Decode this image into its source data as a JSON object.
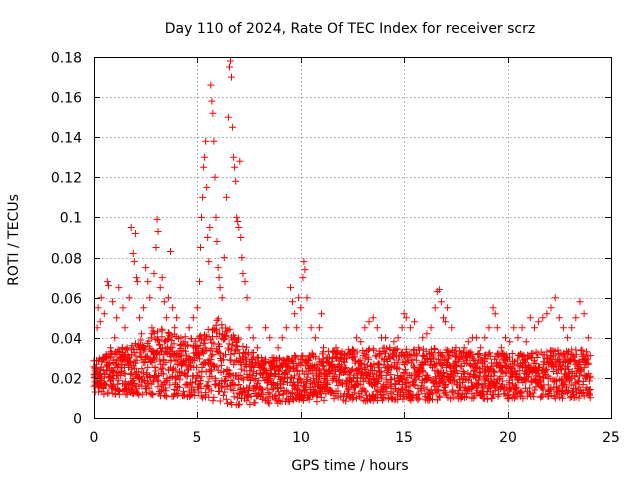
{
  "chart_data": {
    "type": "scatter",
    "title": "Day 110 of 2024, Rate Of TEC Index for receiver scrz",
    "xlabel": "GPS time / hours",
    "ylabel": "ROTI / TECUs",
    "xlim": [
      0,
      25
    ],
    "ylim": [
      0,
      0.18
    ],
    "xticks": [
      0,
      5,
      10,
      15,
      20,
      25
    ],
    "xtick_labels": [
      "0",
      "5",
      "10",
      "15",
      "20",
      "25"
    ],
    "yticks": [
      0,
      0.02,
      0.04,
      0.06,
      0.08,
      0.1,
      0.12,
      0.14,
      0.16,
      0.18
    ],
    "ytick_labels": [
      "0",
      "0.02",
      "0.04",
      "0.06",
      "0.08",
      "0.1",
      "0.12",
      "0.14",
      "0.16",
      "0.18"
    ],
    "grid": true,
    "marker": "+",
    "color": "#ff0000",
    "series": [
      {
        "name": "ROTI",
        "points": [
          [
            0.0,
            0.02
          ],
          [
            0.05,
            0.018
          ],
          [
            0.1,
            0.025
          ],
          [
            0.15,
            0.045
          ],
          [
            0.2,
            0.055
          ],
          [
            0.25,
            0.022
          ],
          [
            0.3,
            0.048
          ],
          [
            0.35,
            0.06
          ],
          [
            0.45,
            0.03
          ],
          [
            0.5,
            0.052
          ],
          [
            0.6,
            0.024
          ],
          [
            0.65,
            0.068
          ],
          [
            0.7,
            0.066
          ],
          [
            0.8,
            0.035
          ],
          [
            0.9,
            0.058
          ],
          [
            1.0,
            0.04
          ],
          [
            1.1,
            0.05
          ],
          [
            1.2,
            0.065
          ],
          [
            1.3,
            0.03
          ],
          [
            1.4,
            0.055
          ],
          [
            1.5,
            0.045
          ],
          [
            1.6,
            0.035
          ],
          [
            1.7,
            0.06
          ],
          [
            1.8,
            0.095
          ],
          [
            1.9,
            0.082
          ],
          [
            1.95,
            0.078
          ],
          [
            2.0,
            0.092
          ],
          [
            2.05,
            0.07
          ],
          [
            2.1,
            0.068
          ],
          [
            2.2,
            0.05
          ],
          [
            2.3,
            0.042
          ],
          [
            2.4,
            0.055
          ],
          [
            2.5,
            0.075
          ],
          [
            2.6,
            0.068
          ],
          [
            2.7,
            0.06
          ],
          [
            2.8,
            0.045
          ],
          [
            2.9,
            0.072
          ],
          [
            3.0,
            0.085
          ],
          [
            3.05,
            0.099
          ],
          [
            3.1,
            0.093
          ],
          [
            3.2,
            0.065
          ],
          [
            3.3,
            0.07
          ],
          [
            3.4,
            0.058
          ],
          [
            3.5,
            0.05
          ],
          [
            3.6,
            0.06
          ],
          [
            3.7,
            0.083
          ],
          [
            3.8,
            0.055
          ],
          [
            3.9,
            0.045
          ],
          [
            4.0,
            0.05
          ],
          [
            4.2,
            0.04
          ],
          [
            4.4,
            0.038
          ],
          [
            4.6,
            0.045
          ],
          [
            4.8,
            0.05
          ],
          [
            5.0,
            0.055
          ],
          [
            5.1,
            0.068
          ],
          [
            5.15,
            0.085
          ],
          [
            5.2,
            0.1
          ],
          [
            5.25,
            0.11
          ],
          [
            5.3,
            0.125
          ],
          [
            5.35,
            0.13
          ],
          [
            5.4,
            0.138
          ],
          [
            5.45,
            0.115
          ],
          [
            5.5,
            0.09
          ],
          [
            5.55,
            0.078
          ],
          [
            5.6,
            0.095
          ],
          [
            5.65,
            0.166
          ],
          [
            5.7,
            0.158
          ],
          [
            5.75,
            0.152
          ],
          [
            5.8,
            0.138
          ],
          [
            5.85,
            0.12
          ],
          [
            5.9,
            0.1
          ],
          [
            5.95,
            0.088
          ],
          [
            6.0,
            0.075
          ],
          [
            6.05,
            0.07
          ],
          [
            6.1,
            0.065
          ],
          [
            6.2,
            0.06
          ],
          [
            6.3,
            0.08
          ],
          [
            6.4,
            0.11
          ],
          [
            6.5,
            0.15
          ],
          [
            6.55,
            0.175
          ],
          [
            6.6,
            0.178
          ],
          [
            6.65,
            0.17
          ],
          [
            6.7,
            0.145
          ],
          [
            6.75,
            0.13
          ],
          [
            6.8,
            0.125
          ],
          [
            6.85,
            0.118
          ],
          [
            6.9,
            0.1
          ],
          [
            6.95,
            0.098
          ],
          [
            7.0,
            0.095
          ],
          [
            7.05,
            0.128
          ],
          [
            7.1,
            0.09
          ],
          [
            7.15,
            0.08
          ],
          [
            7.2,
            0.072
          ],
          [
            7.3,
            0.068
          ],
          [
            7.4,
            0.06
          ],
          [
            7.5,
            0.045
          ],
          [
            7.7,
            0.04
          ],
          [
            7.9,
            0.035
          ],
          [
            8.1,
            0.03
          ],
          [
            8.3,
            0.045
          ],
          [
            8.5,
            0.04
          ],
          [
            8.7,
            0.03
          ],
          [
            8.9,
            0.035
          ],
          [
            9.1,
            0.04
          ],
          [
            9.3,
            0.045
          ],
          [
            9.5,
            0.065
          ],
          [
            9.6,
            0.058
          ],
          [
            9.7,
            0.052
          ],
          [
            9.8,
            0.045
          ],
          [
            9.9,
            0.06
          ],
          [
            10.0,
            0.055
          ],
          [
            10.1,
            0.07
          ],
          [
            10.15,
            0.078
          ],
          [
            10.2,
            0.074
          ],
          [
            10.3,
            0.06
          ],
          [
            10.5,
            0.045
          ],
          [
            10.7,
            0.04
          ],
          [
            10.9,
            0.045
          ],
          [
            11.0,
            0.052
          ],
          [
            11.1,
            0.035
          ],
          [
            11.3,
            0.03
          ],
          [
            11.5,
            0.028
          ],
          [
            11.7,
            0.035
          ],
          [
            11.9,
            0.03
          ],
          [
            12.1,
            0.032
          ],
          [
            12.3,
            0.034
          ],
          [
            12.5,
            0.03
          ],
          [
            12.7,
            0.04
          ],
          [
            12.9,
            0.038
          ],
          [
            13.1,
            0.045
          ],
          [
            13.3,
            0.048
          ],
          [
            13.5,
            0.05
          ],
          [
            13.7,
            0.045
          ],
          [
            13.9,
            0.04
          ],
          [
            14.1,
            0.04
          ],
          [
            14.3,
            0.035
          ],
          [
            14.5,
            0.038
          ],
          [
            14.7,
            0.04
          ],
          [
            14.9,
            0.045
          ],
          [
            15.0,
            0.052
          ],
          [
            15.1,
            0.05
          ],
          [
            15.3,
            0.045
          ],
          [
            15.5,
            0.048
          ],
          [
            15.7,
            0.035
          ],
          [
            15.9,
            0.04
          ],
          [
            16.1,
            0.042
          ],
          [
            16.3,
            0.045
          ],
          [
            16.5,
            0.055
          ],
          [
            16.6,
            0.063
          ],
          [
            16.7,
            0.064
          ],
          [
            16.8,
            0.058
          ],
          [
            16.9,
            0.05
          ],
          [
            17.0,
            0.048
          ],
          [
            17.1,
            0.055
          ],
          [
            17.3,
            0.045
          ],
          [
            17.5,
            0.035
          ],
          [
            17.7,
            0.03
          ],
          [
            17.9,
            0.035
          ],
          [
            18.1,
            0.038
          ],
          [
            18.3,
            0.04
          ],
          [
            18.5,
            0.04
          ],
          [
            18.7,
            0.035
          ],
          [
            18.9,
            0.04
          ],
          [
            19.1,
            0.045
          ],
          [
            19.3,
            0.055
          ],
          [
            19.4,
            0.052
          ],
          [
            19.5,
            0.045
          ],
          [
            19.7,
            0.035
          ],
          [
            19.9,
            0.04
          ],
          [
            20.1,
            0.038
          ],
          [
            20.3,
            0.045
          ],
          [
            20.5,
            0.04
          ],
          [
            20.7,
            0.045
          ],
          [
            20.9,
            0.038
          ],
          [
            21.1,
            0.05
          ],
          [
            21.3,
            0.045
          ],
          [
            21.5,
            0.048
          ],
          [
            21.7,
            0.05
          ],
          [
            21.9,
            0.052
          ],
          [
            22.1,
            0.055
          ],
          [
            22.3,
            0.06
          ],
          [
            22.5,
            0.05
          ],
          [
            22.7,
            0.045
          ],
          [
            22.9,
            0.04
          ],
          [
            23.1,
            0.045
          ],
          [
            23.3,
            0.05
          ],
          [
            23.5,
            0.058
          ],
          [
            23.7,
            0.052
          ],
          [
            23.9,
            0.04
          ]
        ],
        "band": {
          "comment": "dense ROTI baseline sampled every 0.05 h (approximate)",
          "x_start": 0,
          "x_end": 24,
          "x_step": 0.05,
          "low_profile": [
            [
              0,
              0.012
            ],
            [
              5,
              0.01
            ],
            [
              7,
              0.006
            ],
            [
              10,
              0.008
            ],
            [
              24,
              0.01
            ]
          ],
          "high_profile": [
            [
              0,
              0.03
            ],
            [
              2,
              0.038
            ],
            [
              3,
              0.045
            ],
            [
              5,
              0.04
            ],
            [
              6,
              0.05
            ],
            [
              7,
              0.04
            ],
            [
              8,
              0.03
            ],
            [
              10,
              0.032
            ],
            [
              13,
              0.035
            ],
            [
              16,
              0.035
            ],
            [
              20,
              0.032
            ],
            [
              24,
              0.035
            ]
          ]
        }
      }
    ]
  }
}
